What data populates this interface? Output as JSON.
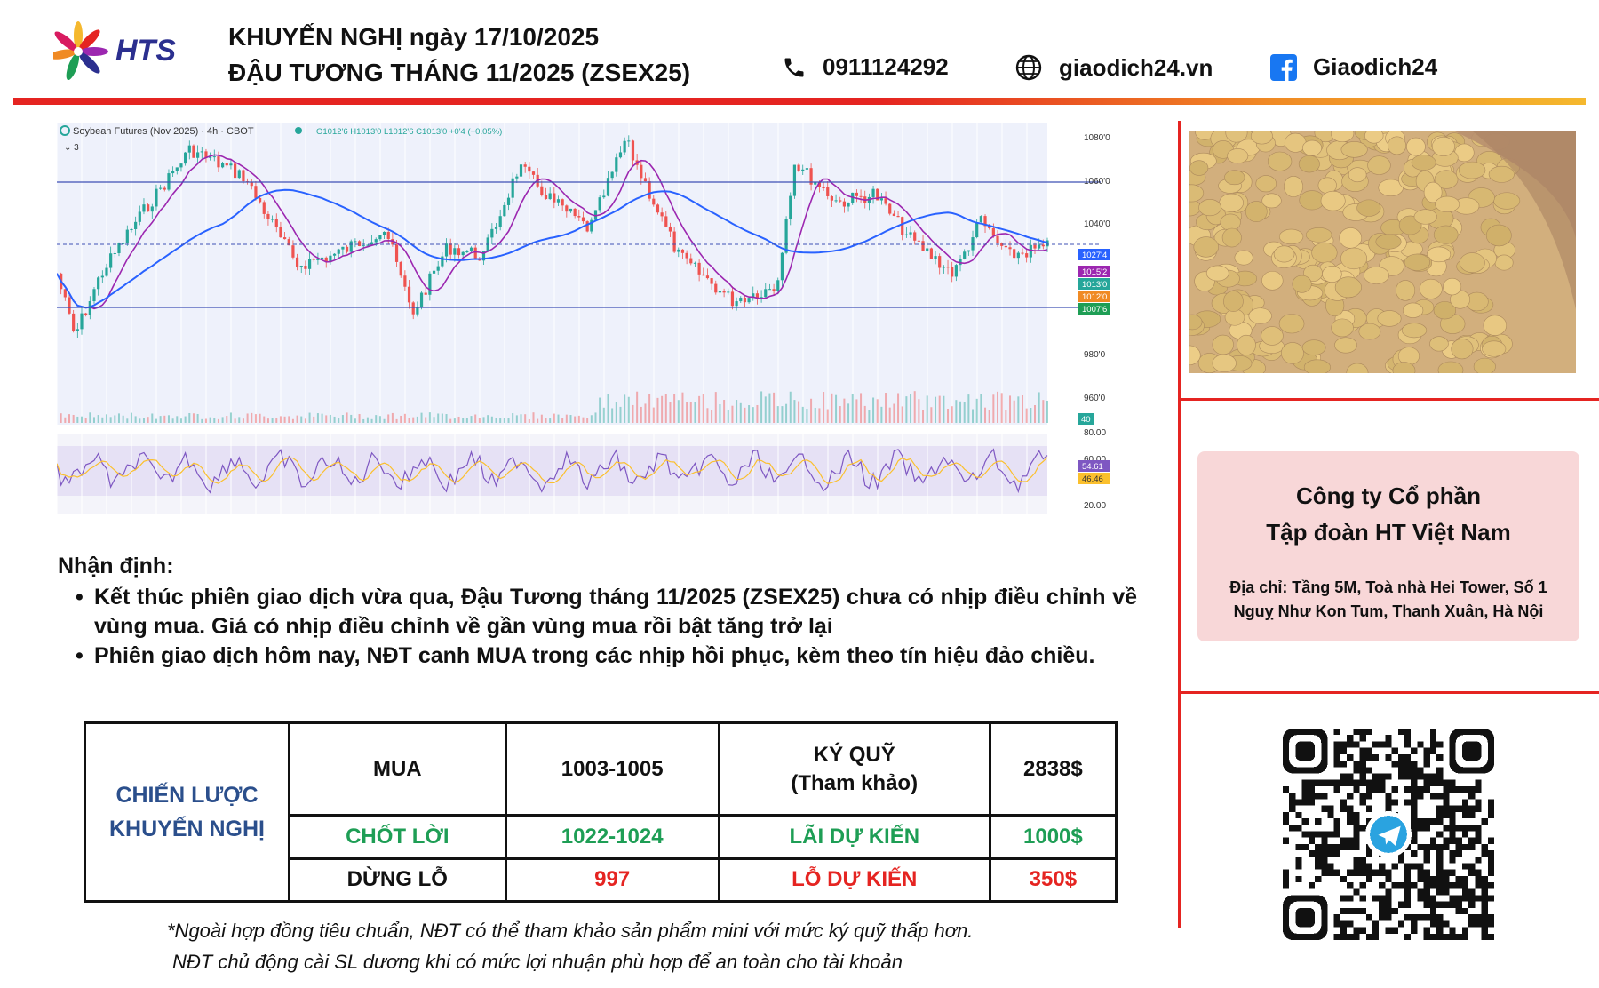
{
  "header": {
    "brand": "HTS",
    "title_line1": "KHUYẾN NGHỊ ngày 17/10/2025",
    "title_line2": "ĐẬU TƯƠNG THÁNG 11/2025 (ZSEX25)",
    "phone": "0911124292",
    "website": "giaodich24.vn",
    "facebook": "Giaodich24"
  },
  "chart": {
    "legend": "Soybean Futures (Nov 2025) · 4h · CBOT",
    "ohlc": "O1012'6  H1013'0  L1012'6  C1013'0  +0'4 (+0.05%)",
    "indicator_count": "3",
    "price_axis": [
      "1080'0",
      "1060'0",
      "1040'0",
      "980'0",
      "960'0"
    ],
    "price_tags": [
      "1027'4",
      "1015'2",
      "1013'0",
      "1012'0",
      "1007'6"
    ],
    "volume_tag": "40",
    "rsi_axis": [
      "80.00",
      "60.00",
      "20.00"
    ],
    "rsi_tags": [
      "54.61",
      "46.46"
    ],
    "colors": {
      "bg": "#eef1fb",
      "up": "#26a69a",
      "down": "#ef5350",
      "ma_fast": "#9c27b0",
      "ma_slow": "#2962ff",
      "rsi": "#7e57c2",
      "rsi_ma": "#fbc02d"
    }
  },
  "analysis": {
    "title": "Nhận định:",
    "bullets": [
      "Kết thúc phiên giao dịch vừa qua, Đậu Tương tháng 11/2025 (ZSEX25) chưa có nhịp điều chỉnh về vùng mua. Giá có nhịp điều chỉnh về gần vùng mua rồi bật tăng trở lại",
      "Phiên giao dịch hôm nay, NĐT canh MUA trong các nhịp hồi phục, kèm theo tín hiệu đảo chiều."
    ]
  },
  "strategy": {
    "label_line1": "CHIẾN LƯỢC",
    "label_line2": "KHUYẾN NGHỊ",
    "rows": [
      {
        "name": "MUA",
        "value": "1003-1005",
        "metric_line1": "KÝ QUỸ",
        "metric_line2": "(Tham khảo)",
        "amount": "2838$"
      },
      {
        "name": "CHỐT LỜI",
        "value": "1022-1024",
        "metric_line1": "LÃI DỰ KIẾN",
        "metric_line2": "",
        "amount": "1000$"
      },
      {
        "name": "DỪNG LỖ",
        "value": "997",
        "metric_line1": "LỖ DỰ KIẾN",
        "metric_line2": "",
        "amount": "350$"
      }
    ]
  },
  "footnote": {
    "line1": "*Ngoài hợp đồng tiêu chuẩn, NĐT có thể tham khảo sản phẩm mini với mức ký quỹ thấp hơn.",
    "line2": "NĐT chủ động cài SL dương khi có mức lợi nhuận phù hợp để an toàn cho tài khoản"
  },
  "company": {
    "name_line1": "Công ty Cổ phần",
    "name_line2": "Tập đoàn HT Việt Nam",
    "address_line1": "Địa chỉ: Tầng 5M, Toà nhà Hei Tower, Số 1",
    "address_line2": "Nguỵ Như Kon Tum, Thanh Xuân, Hà Nội"
  },
  "theme": {
    "accent": "#e52421",
    "brand_blue": "#2b2f8f",
    "table_label": "#2b4f8c",
    "green": "#1e9e55",
    "red": "#e52421"
  }
}
